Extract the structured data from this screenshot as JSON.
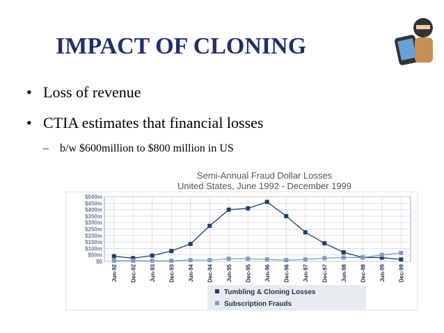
{
  "slide": {
    "title": "IMPACT OF CLONING",
    "bullets": [
      "Loss of revenue",
      "CTIA estimates that financial losses"
    ],
    "sub_bullet": "b/w $600million to $800 million in US"
  },
  "chart_data": {
    "type": "line",
    "title": "Semi-Annual Fraud Dollar Losses",
    "subtitle": "United States, June 1992 - December 1999",
    "categories": [
      "Jun-92",
      "Dec-92",
      "Jun-93",
      "Dec-93",
      "Jun-94",
      "Dec-94",
      "Jun-95",
      "Dec-95",
      "Jun-96",
      "Dec-96",
      "Jun-97",
      "Dec-97",
      "Jun-98",
      "Dec-98",
      "Jun-99",
      "Dec-99"
    ],
    "series": [
      {
        "name": "Tumbling & Cloning Losses",
        "color": "#1f3f6a",
        "values": [
          40,
          25,
          45,
          80,
          135,
          275,
          400,
          410,
          460,
          350,
          225,
          140,
          70,
          30,
          30,
          15
        ]
      },
      {
        "name": "Subscription Frauds",
        "color": "#7f9cc0",
        "values": [
          5,
          5,
          5,
          5,
          10,
          10,
          20,
          20,
          15,
          10,
          15,
          25,
          30,
          30,
          50,
          65
        ]
      }
    ],
    "ylim": [
      0,
      500
    ],
    "yticks": [
      {
        "value": 0,
        "label": "$0"
      },
      {
        "value": 50,
        "label": "$50m"
      },
      {
        "value": 100,
        "label": "$100m"
      },
      {
        "value": 150,
        "label": "$150m"
      },
      {
        "value": 200,
        "label": "$200m"
      },
      {
        "value": 250,
        "label": "$250m"
      },
      {
        "value": 300,
        "label": "$300m"
      },
      {
        "value": 350,
        "label": "$350m"
      },
      {
        "value": 400,
        "label": "$400m"
      },
      {
        "value": 450,
        "label": "$450m"
      },
      {
        "value": 500,
        "label": "$500m"
      }
    ],
    "grid": true
  }
}
